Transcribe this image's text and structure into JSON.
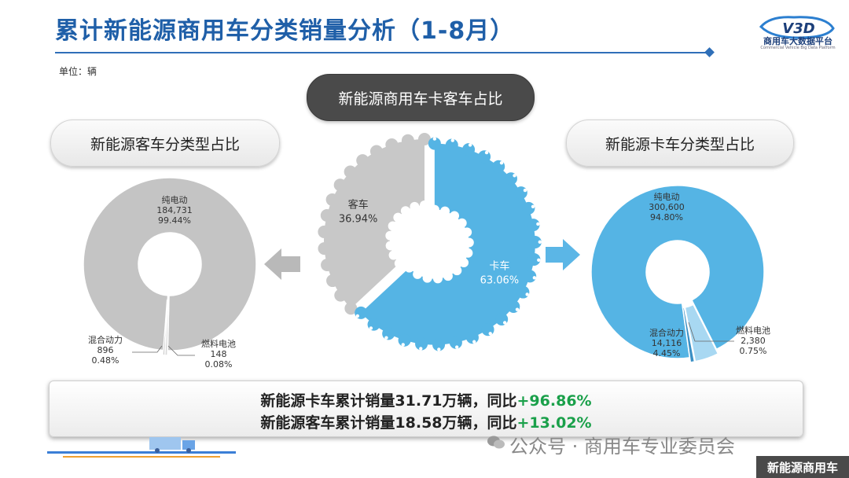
{
  "header": {
    "title": "累计新能源商用车分类销量分析（1-8月）",
    "unit": "单位：辆"
  },
  "logo": {
    "mark": "V3D",
    "name_cn": "商用车大数据平台",
    "name_en": "Commercial Vehicle Big Data Platform"
  },
  "pills": {
    "center": "新能源商用车卡客车占比",
    "left": "新能源客车分类型占比",
    "right": "新能源卡车分类型占比"
  },
  "colors": {
    "truck": "#55b4e4",
    "bus": "#c8c8c8",
    "accent": "#1f5fa8",
    "positive": "#1aa04a",
    "arrow_bus": "#b9b9b9",
    "arrow_truck": "#5bb6e6"
  },
  "summary": {
    "line1_text": "新能源卡车累计销量31.71万辆，同比",
    "line1_pct": "+96.86%",
    "line2_text": "新能源客车累计销量18.58万辆，同比",
    "line2_pct": "+13.02%"
  },
  "watermark": {
    "text": "公众号 · 商用车专业委员会"
  },
  "corner_badge": "新能源商用车",
  "chart_data": [
    {
      "type": "pie",
      "categories": [
        "客车",
        "卡车"
      ],
      "values": [
        36.94,
        63.06
      ],
      "labels": [
        [
          "客车",
          "36.94%"
        ],
        [
          "卡车",
          "63.06%"
        ]
      ],
      "colors": [
        "#c8c8c8",
        "#55b4e4"
      ]
    },
    {
      "type": "pie",
      "categories": [
        "纯电动",
        "混合动力",
        "燃料电池"
      ],
      "values": [
        184731,
        896,
        148
      ],
      "percents": [
        "99.44%",
        "0.48%",
        "0.08%"
      ],
      "labels": [
        [
          "纯电动",
          "184,731",
          "99.44%"
        ],
        [
          "混合动力",
          "896",
          "0.48%"
        ],
        [
          "燃料电池",
          "148",
          "0.08%"
        ]
      ],
      "colors": [
        "#c4c4c4",
        "#d9d9d9",
        "#a8a8a8"
      ]
    },
    {
      "type": "pie",
      "categories": [
        "纯电动",
        "混合动力",
        "燃料电池"
      ],
      "values": [
        300600,
        14116,
        2380
      ],
      "percents": [
        "94.80%",
        "4.45%",
        "0.75%"
      ],
      "labels": [
        [
          "纯电动",
          "300,600",
          "94.80%"
        ],
        [
          "混合动力",
          "14,116",
          "4.45%"
        ],
        [
          "燃料电池",
          "2,380",
          "0.75%"
        ]
      ],
      "colors": [
        "#55b4e4",
        "#a8d8f2",
        "#3a8fc4"
      ]
    }
  ]
}
